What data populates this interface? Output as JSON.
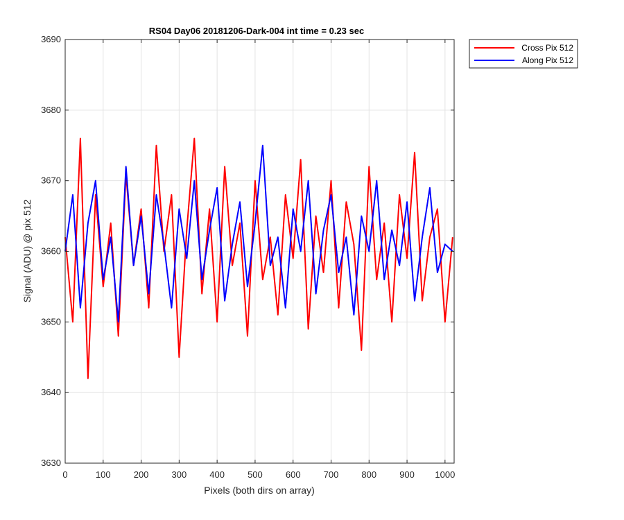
{
  "chart_data": {
    "type": "line",
    "title": "RS04 Day06 20181206-Dark-004 int time = 0.23 sec",
    "xlabel": "Pixels (both dirs on array)",
    "ylabel": "Signal (ADU) @ pix 512",
    "xlim": [
      0,
      1024
    ],
    "ylim": [
      3630,
      3690
    ],
    "xticks": [
      0,
      100,
      200,
      300,
      400,
      500,
      600,
      700,
      800,
      900,
      1000
    ],
    "yticks": [
      3630,
      3640,
      3650,
      3660,
      3670,
      3680,
      3690
    ],
    "grid": true,
    "legend_position": "outside-top-right",
    "x": [
      0,
      20,
      40,
      60,
      80,
      100,
      120,
      140,
      160,
      180,
      200,
      220,
      240,
      260,
      280,
      300,
      320,
      340,
      360,
      380,
      400,
      420,
      440,
      460,
      480,
      500,
      520,
      540,
      560,
      580,
      600,
      620,
      640,
      660,
      680,
      700,
      720,
      740,
      760,
      780,
      800,
      820,
      840,
      860,
      880,
      900,
      920,
      940,
      960,
      980,
      1000,
      1020
    ],
    "series": [
      {
        "name": "Cross Pix 512",
        "color": "#ff0000",
        "values": [
          3662,
          3650,
          3676,
          3642,
          3668,
          3655,
          3664,
          3648,
          3671,
          3658,
          3666,
          3652,
          3675,
          3660,
          3668,
          3645,
          3663,
          3676,
          3654,
          3666,
          3650,
          3672,
          3658,
          3664,
          3648,
          3670,
          3656,
          3662,
          3651,
          3668,
          3659,
          3673,
          3649,
          3665,
          3657,
          3670,
          3652,
          3667,
          3661,
          3646,
          3672,
          3656,
          3664,
          3650,
          3668,
          3659,
          3674,
          3653,
          3662,
          3666,
          3650,
          3662
        ]
      },
      {
        "name": "Along Pix 512",
        "color": "#0000ff",
        "values": [
          3660,
          3668,
          3652,
          3664,
          3670,
          3656,
          3662,
          3650,
          3672,
          3658,
          3665,
          3654,
          3668,
          3661,
          3652,
          3666,
          3659,
          3670,
          3656,
          3663,
          3669,
          3653,
          3661,
          3667,
          3655,
          3664,
          3675,
          3658,
          3662,
          3652,
          3666,
          3660,
          3670,
          3654,
          3663,
          3668,
          3657,
          3662,
          3651,
          3665,
          3660,
          3670,
          3656,
          3663,
          3658,
          3667,
          3653,
          3662,
          3669,
          3657,
          3661,
          3660
        ]
      }
    ]
  }
}
